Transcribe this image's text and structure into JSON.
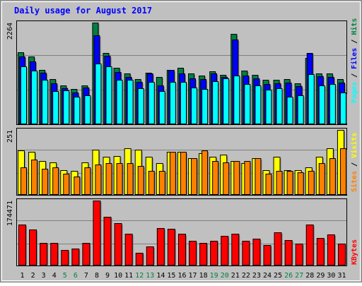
{
  "chart_data": [
    {
      "type": "bar",
      "title": "Daily usage for August 2017",
      "panel": "hits-files-pages",
      "categories": [
        "1",
        "2",
        "3",
        "4",
        "5",
        "6",
        "7",
        "8",
        "9",
        "10",
        "11",
        "12",
        "13",
        "14",
        "15",
        "16",
        "17",
        "18",
        "19",
        "20",
        "21",
        "22",
        "23",
        "24",
        "25",
        "26",
        "27",
        "28",
        "29",
        "30",
        "31"
      ],
      "weekend_days": [
        "5",
        "6",
        "12",
        "13",
        "19",
        "20",
        "26",
        "27"
      ],
      "ymax": 2264,
      "ymax_label": "2264",
      "series": [
        {
          "name": "Hits",
          "color": "#008040",
          "values": [
            1600,
            1500,
            1200,
            1000,
            850,
            770,
            860,
            2264,
            1590,
            1250,
            1120,
            1000,
            1140,
            1050,
            1200,
            1250,
            1130,
            1070,
            1170,
            1100,
            2005,
            1180,
            1090,
            980,
            980,
            1000,
            900,
            1470,
            1130,
            1130,
            1000
          ]
        },
        {
          "name": "Files",
          "color": "#0000ff",
          "values": [
            1500,
            1390,
            1140,
            900,
            790,
            700,
            810,
            1980,
            1520,
            1160,
            1050,
            930,
            1120,
            860,
            1200,
            1130,
            1020,
            990,
            1120,
            1040,
            1880,
            1070,
            1010,
            880,
            900,
            920,
            840,
            1590,
            1060,
            1050,
            920
          ]
        },
        {
          "name": "Pages",
          "color": "#00ffff",
          "values": [
            1290,
            1180,
            980,
            730,
            740,
            600,
            640,
            1340,
            1290,
            980,
            980,
            790,
            940,
            730,
            940,
            940,
            800,
            780,
            950,
            1020,
            1070,
            890,
            850,
            760,
            790,
            600,
            630,
            1110,
            860,
            880,
            690
          ]
        }
      ],
      "legend_labels": [
        "Pages",
        "/",
        "Files",
        "/",
        "Hits"
      ]
    },
    {
      "type": "bar",
      "panel": "sites-visits",
      "ymax": 251,
      "ymax_label": "251",
      "series": [
        {
          "name": "Visits",
          "color": "#ffff00",
          "values": [
            170,
            165,
            130,
            125,
            95,
            90,
            125,
            175,
            145,
            150,
            180,
            175,
            145,
            120,
            165,
            165,
            140,
            160,
            145,
            155,
            130,
            120,
            140,
            95,
            145,
            95,
            95,
            105,
            145,
            180,
            251
          ]
        },
        {
          "name": "Sites",
          "color": "#ff8000",
          "values": [
            105,
            135,
            100,
            105,
            80,
            70,
            105,
            115,
            120,
            120,
            120,
            110,
            90,
            90,
            165,
            165,
            140,
            170,
            130,
            125,
            130,
            130,
            140,
            80,
            90,
            90,
            85,
            90,
            120,
            140,
            180
          ]
        }
      ],
      "legend_labels": [
        "Sites",
        "/",
        "Visits"
      ]
    },
    {
      "type": "bar",
      "panel": "kbytes",
      "ymax": 174471,
      "ymax_label": "174471",
      "series": [
        {
          "name": "KBytes",
          "color": "#ff0000",
          "values": [
            110000,
            95000,
            60000,
            60000,
            40000,
            45000,
            60000,
            174471,
            130000,
            113000,
            84000,
            32000,
            50000,
            100000,
            98000,
            85000,
            65000,
            60000,
            65000,
            78000,
            85000,
            65000,
            70000,
            53000,
            88000,
            68000,
            58000,
            110000,
            72000,
            83000,
            58000
          ]
        }
      ],
      "legend_labels": [
        "KBytes"
      ]
    }
  ]
}
